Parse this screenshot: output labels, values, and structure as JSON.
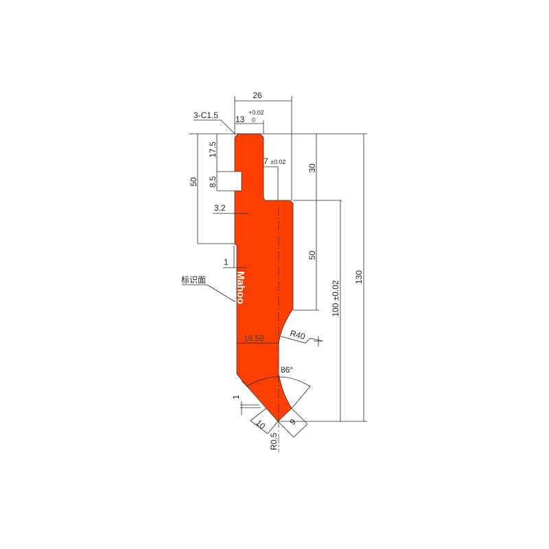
{
  "colors": {
    "part_fill": "#FF3F00",
    "line": "#222222",
    "background": "#FFFFFF"
  },
  "part": {
    "marking_text": "Mahoo"
  },
  "dimensions": {
    "overall_width": "26",
    "tang_width": "13",
    "tang_tol_upper": "+0.02",
    "tang_tol_lower": "0",
    "chamfer": "3-C1.5",
    "groove_top": "17.5",
    "groove_height": "8.5",
    "tang_height": "50",
    "slot_width": "7",
    "slot_tol": "±0.02",
    "shoulder_height": "30",
    "groove_depth": "3.2",
    "body_height": "50",
    "working_height": "100 ±0.02",
    "total_height": "130",
    "step": "1",
    "marking_face": "标识面",
    "neck_width": "18.58",
    "radius": "R40",
    "angle": "86°",
    "flat": "1",
    "left_face": "10",
    "right_face": "9",
    "tip_radius": "R0.5"
  }
}
